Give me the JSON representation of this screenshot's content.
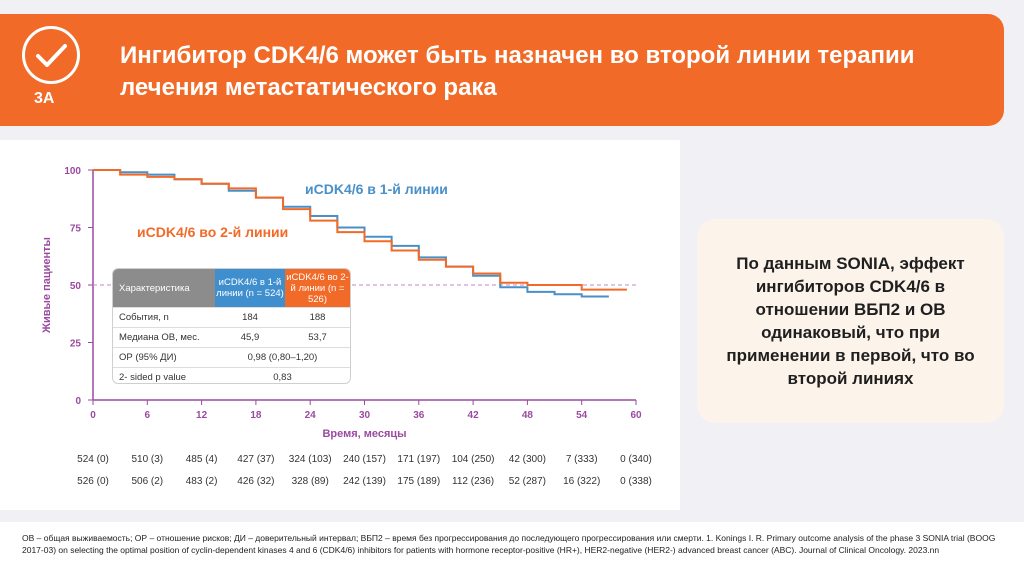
{
  "header": {
    "badge_label": "3А",
    "title": "Ингибитор CDK4/6 может быть назначен во второй линии терапии лечения метастатического рака"
  },
  "callout": {
    "text": "По данным SONIA, эффект ингибиторов CDK4/6 в отношении ВБП2 и ОВ одинаковый, что при применении в первой, что во второй линиях"
  },
  "stats_table": {
    "header": {
      "label": "Характеристика",
      "first_line": "иCDK4/6 в 1-й линии (n = 524)",
      "second_line": "иCDK4/6 во 2-й линии (n = 526)"
    },
    "rows": [
      {
        "label": "События, n",
        "first": "184",
        "second": "188",
        "merged": ""
      },
      {
        "label": "Медиана ОВ, мес.",
        "first": "45,9",
        "second": "53,7",
        "merged": ""
      },
      {
        "label": "ОР (95% ДИ)",
        "first": "",
        "second": "",
        "merged": "0,98 (0,80–1,20)"
      },
      {
        "label": "2- sided p value",
        "first": "",
        "second": "",
        "merged": "0,83"
      }
    ]
  },
  "chart_data": {
    "type": "line",
    "xlabel": "Время, месяцы",
    "ylabel": "Живые пациенты",
    "xlim": [
      0,
      60
    ],
    "ylim": [
      0,
      100
    ],
    "xticks": [
      0,
      6,
      12,
      18,
      24,
      30,
      36,
      42,
      48,
      54,
      60
    ],
    "yticks": [
      0,
      25,
      50,
      75,
      100
    ],
    "reference_line_y": 50,
    "series": [
      {
        "name": "иCDK4/6 в 1-й линии",
        "color": "#4a90c8",
        "x": [
          0,
          3,
          6,
          9,
          12,
          15,
          18,
          21,
          24,
          27,
          30,
          33,
          36,
          39,
          42,
          45,
          48,
          51,
          54,
          57
        ],
        "y": [
          100,
          99,
          98,
          96,
          94,
          91,
          88,
          84,
          80,
          75,
          71,
          67,
          62,
          58,
          54,
          49,
          47,
          46,
          45,
          45
        ],
        "at_risk": [
          "524 (0)",
          "510 (3)",
          "485 (4)",
          "427 (37)",
          "324 (103)",
          "240 (157)",
          "171 (197)",
          "104 (250)",
          "42 (300)",
          "7 (333)",
          "0 (340)"
        ]
      },
      {
        "name": "иCDK4/6 во 2-й линии",
        "color": "#f26a27",
        "x": [
          0,
          3,
          6,
          9,
          12,
          15,
          18,
          21,
          24,
          27,
          30,
          33,
          36,
          39,
          42,
          45,
          48,
          51,
          54,
          57,
          59
        ],
        "y": [
          100,
          98,
          97,
          96,
          94,
          92,
          88,
          83,
          78,
          73,
          69,
          65,
          61,
          58,
          55,
          51,
          50,
          50,
          48,
          48,
          48
        ],
        "at_risk": [
          "526 (0)",
          "506 (2)",
          "483 (2)",
          "426 (32)",
          "328 (89)",
          "242 (139)",
          "175 (189)",
          "112 (236)",
          "52 (287)",
          "16 (322)",
          "0 (338)"
        ]
      }
    ]
  },
  "footnote": {
    "text": "ОВ – общая выживаемость; ОР – отношение рисков; ДИ – доверительный интервал; ВБП2 – время без прогрессирования до последующего прогрессирования или смерти. 1. Konings I. R. Primary outcome analysis of the phase 3 SONIA trial (BOOG 2017-03) on selecting the optimal position of cyclin-dependent kinases 4 and 6 (CDK4/6) inhibitors for patients with hormone receptor-positive (HR+), HER2-negative (HER2-) advanced breast cancer (ABC). Journal of Clinical Oncology. 2023.nn"
  }
}
